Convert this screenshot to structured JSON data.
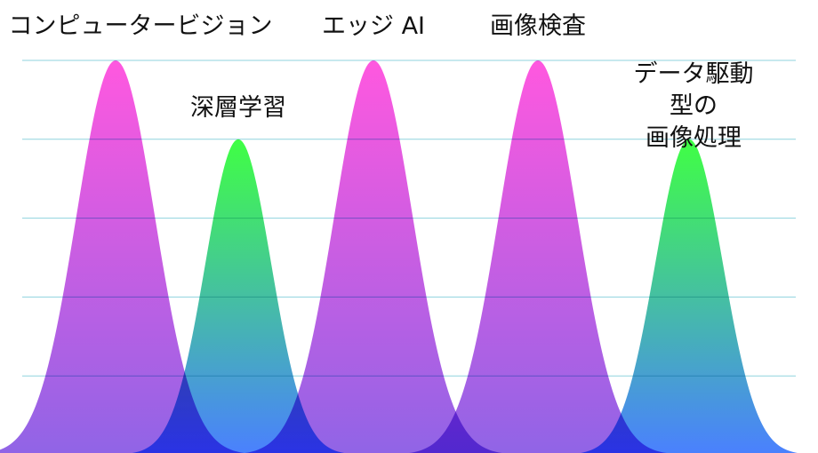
{
  "chart_data": {
    "type": "peaks",
    "categories": [
      "コンピュータービジョン",
      "深層学習",
      "エッジ AI",
      "画像検査",
      "データ駆動型の\n画像処理"
    ],
    "values": [
      5,
      4,
      5,
      5,
      4
    ],
    "gradients": [
      [
        "#ff58df",
        "#9064e6"
      ],
      [
        "#40ff44",
        "#4a80ff"
      ],
      [
        "#ff58df",
        "#9064e6"
      ],
      [
        "#ff58df",
        "#9064e6"
      ],
      [
        "#40ff44",
        "#4a80ff"
      ]
    ],
    "ylim": [
      0,
      5
    ],
    "yticks": [
      1,
      2,
      3,
      4,
      5
    ],
    "grid": true
  }
}
